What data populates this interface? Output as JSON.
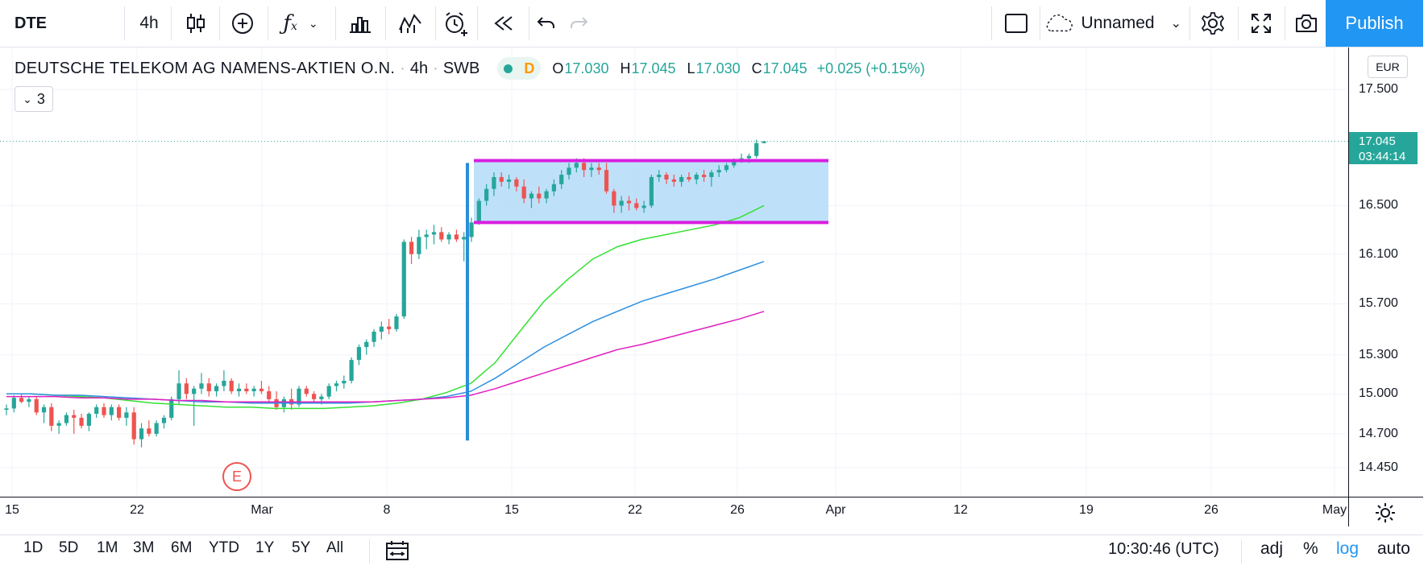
{
  "toolbar": {
    "symbol": "DTE",
    "interval": "4h",
    "layout_name": "Unnamed",
    "publish_label": "Publish",
    "icons": [
      "candles-icon",
      "add-compare-icon",
      "indicators-icon",
      "templates-icon",
      "alert-icon",
      "replay-icon",
      "undo-icon",
      "redo-icon",
      "layout-icon",
      "cloud-icon",
      "settings-icon",
      "fullscreen-icon",
      "camera-icon"
    ]
  },
  "legend": {
    "title": "DEUTSCHE TELEKOM AG NAMENS-AKTIEN O.N.",
    "interval": "4h",
    "exchange": "SWB",
    "badge_letter": "D",
    "o_key": "O",
    "o_val": "17.030",
    "h_key": "H",
    "h_val": "17.045",
    "l_key": "L",
    "l_val": "17.030",
    "c_key": "C",
    "c_val": "17.045",
    "change": "+0.025 (+0.15%)",
    "indicators_count": "3"
  },
  "price_scale": {
    "currency": "EUR",
    "labels": [
      "17.500",
      "16.500",
      "16.100",
      "15.700",
      "15.300",
      "15.000",
      "14.700",
      "14.450"
    ],
    "last_price": "17.045",
    "countdown": "03:44:14"
  },
  "time_scale": {
    "labels": [
      "15",
      "22",
      "Mar",
      "8",
      "15",
      "22",
      "26",
      "Apr",
      "12",
      "19",
      "26",
      "May"
    ]
  },
  "earnings_marker": "E",
  "bottom": {
    "ranges": [
      "1D",
      "5D",
      "1M",
      "3M",
      "6M",
      "YTD",
      "1Y",
      "5Y",
      "All"
    ],
    "clock": "10:30:46 (UTC)",
    "adj": "adj",
    "percent": "%",
    "log": "log",
    "auto": "auto"
  },
  "colors": {
    "up": "#26a69a",
    "down": "#ef5350",
    "ma_fast": "#33e033",
    "ma_mid": "#2d8fe0",
    "ma_slow": "#e020c0",
    "range_box": "#b3dcf8",
    "range_lines": "#d91ee0",
    "vertical_marker": "#2a8fd8",
    "accent": "#2196f3"
  },
  "chart_data": {
    "type": "candlestick",
    "symbol": "DTE",
    "interval": "4h",
    "scale": "log",
    "ylim": [
      14.35,
      17.65
    ],
    "candles": [
      [
        14.88,
        14.92,
        14.84,
        14.89
      ],
      [
        14.89,
        14.99,
        14.86,
        14.97
      ],
      [
        14.97,
        15.0,
        14.93,
        14.94
      ],
      [
        14.94,
        14.98,
        14.9,
        14.96
      ],
      [
        14.96,
        14.98,
        14.84,
        14.86
      ],
      [
        14.86,
        14.92,
        14.78,
        14.9
      ],
      [
        14.9,
        14.93,
        14.72,
        14.76
      ],
      [
        14.76,
        14.8,
        14.7,
        14.78
      ],
      [
        14.78,
        14.86,
        14.76,
        14.84
      ],
      [
        14.84,
        14.88,
        14.7,
        14.82
      ],
      [
        14.82,
        14.85,
        14.74,
        14.76
      ],
      [
        14.76,
        14.86,
        14.72,
        14.85
      ],
      [
        14.85,
        14.92,
        14.82,
        14.9
      ],
      [
        14.9,
        14.93,
        14.82,
        14.84
      ],
      [
        14.84,
        14.92,
        14.8,
        14.9
      ],
      [
        14.9,
        14.92,
        14.8,
        14.82
      ],
      [
        14.82,
        14.9,
        14.76,
        14.86
      ],
      [
        14.86,
        14.9,
        14.62,
        14.66
      ],
      [
        14.66,
        14.78,
        14.6,
        14.74
      ],
      [
        14.74,
        14.8,
        14.68,
        14.7
      ],
      [
        14.7,
        14.8,
        14.68,
        14.78
      ],
      [
        14.78,
        14.84,
        14.74,
        14.82
      ],
      [
        14.82,
        14.98,
        14.8,
        14.96
      ],
      [
        14.96,
        15.18,
        14.92,
        15.08
      ],
      [
        15.08,
        15.12,
        14.96,
        15.0
      ],
      [
        15.0,
        15.06,
        14.76,
        15.04
      ],
      [
        15.04,
        15.16,
        15.0,
        15.08
      ],
      [
        15.08,
        15.12,
        14.98,
        15.02
      ],
      [
        15.02,
        15.08,
        14.98,
        15.06
      ],
      [
        15.06,
        15.18,
        15.02,
        15.1
      ],
      [
        15.1,
        15.12,
        15.0,
        15.02
      ],
      [
        15.02,
        15.08,
        14.98,
        15.04
      ],
      [
        15.04,
        15.08,
        15.0,
        15.02
      ],
      [
        15.02,
        15.06,
        14.98,
        15.04
      ],
      [
        15.04,
        15.1,
        15.0,
        15.02
      ],
      [
        15.02,
        15.06,
        14.94,
        14.96
      ],
      [
        14.96,
        15.02,
        14.88,
        14.9
      ],
      [
        14.9,
        14.98,
        14.86,
        14.96
      ],
      [
        14.96,
        15.04,
        14.88,
        14.92
      ],
      [
        14.92,
        15.06,
        14.9,
        15.04
      ],
      [
        15.04,
        15.06,
        14.98,
        15.0
      ],
      [
        15.0,
        15.02,
        14.94,
        14.96
      ],
      [
        14.96,
        15.0,
        14.92,
        14.98
      ],
      [
        14.98,
        15.08,
        14.96,
        15.06
      ],
      [
        15.06,
        15.1,
        15.02,
        15.08
      ],
      [
        15.08,
        15.14,
        15.04,
        15.1
      ],
      [
        15.1,
        15.28,
        15.08,
        15.26
      ],
      [
        15.26,
        15.38,
        15.22,
        15.36
      ],
      [
        15.36,
        15.42,
        15.3,
        15.4
      ],
      [
        15.4,
        15.5,
        15.36,
        15.48
      ],
      [
        15.48,
        15.56,
        15.42,
        15.52
      ],
      [
        15.52,
        15.58,
        15.46,
        15.5
      ],
      [
        15.5,
        15.62,
        15.48,
        15.6
      ],
      [
        15.6,
        16.22,
        15.58,
        16.2
      ],
      [
        16.2,
        16.24,
        16.02,
        16.1
      ],
      [
        16.1,
        16.3,
        16.06,
        16.24
      ],
      [
        16.24,
        16.3,
        16.14,
        16.26
      ],
      [
        16.26,
        16.34,
        16.18,
        16.28
      ],
      [
        16.28,
        16.32,
        16.2,
        16.22
      ],
      [
        16.22,
        16.28,
        16.18,
        16.26
      ],
      [
        16.26,
        16.3,
        16.2,
        16.22
      ],
      [
        16.22,
        16.28,
        16.04,
        16.24
      ],
      [
        16.24,
        16.4,
        16.2,
        16.36
      ],
      [
        16.36,
        16.56,
        16.34,
        16.54
      ],
      [
        16.54,
        16.68,
        16.5,
        16.64
      ],
      [
        16.64,
        16.78,
        16.58,
        16.74
      ],
      [
        16.74,
        16.78,
        16.66,
        16.7
      ],
      [
        16.7,
        16.76,
        16.64,
        16.72
      ],
      [
        16.72,
        16.74,
        16.62,
        16.66
      ],
      [
        16.66,
        16.72,
        16.52,
        16.56
      ],
      [
        16.56,
        16.62,
        16.48,
        16.6
      ],
      [
        16.6,
        16.66,
        16.52,
        16.56
      ],
      [
        16.56,
        16.64,
        16.52,
        16.62
      ],
      [
        16.62,
        16.72,
        16.58,
        16.68
      ],
      [
        16.68,
        16.8,
        16.64,
        16.76
      ],
      [
        16.76,
        16.86,
        16.72,
        16.82
      ],
      [
        16.82,
        16.9,
        16.78,
        16.86
      ],
      [
        16.86,
        16.9,
        16.74,
        16.8
      ],
      [
        16.8,
        16.86,
        16.74,
        16.82
      ],
      [
        16.82,
        16.86,
        16.76,
        16.8
      ],
      [
        16.8,
        16.86,
        16.6,
        16.62
      ],
      [
        16.62,
        16.64,
        16.44,
        16.5
      ],
      [
        16.5,
        16.58,
        16.44,
        16.54
      ],
      [
        16.54,
        16.58,
        16.46,
        16.52
      ],
      [
        16.52,
        16.56,
        16.46,
        16.48
      ],
      [
        16.48,
        16.54,
        16.44,
        16.5
      ],
      [
        16.5,
        16.76,
        16.48,
        16.74
      ],
      [
        16.74,
        16.8,
        16.7,
        16.76
      ],
      [
        16.76,
        16.78,
        16.68,
        16.72
      ],
      [
        16.72,
        16.76,
        16.66,
        16.7
      ],
      [
        16.7,
        16.76,
        16.66,
        16.74
      ],
      [
        16.74,
        16.78,
        16.7,
        16.72
      ],
      [
        16.72,
        16.78,
        16.68,
        16.76
      ],
      [
        16.76,
        16.8,
        16.7,
        16.74
      ],
      [
        16.74,
        16.8,
        16.66,
        16.78
      ],
      [
        16.78,
        16.84,
        16.74,
        16.8
      ],
      [
        16.8,
        16.86,
        16.78,
        16.84
      ],
      [
        16.84,
        16.9,
        16.82,
        16.88
      ],
      [
        16.88,
        16.94,
        16.86,
        16.9
      ],
      [
        16.9,
        16.94,
        16.86,
        16.92
      ],
      [
        16.92,
        17.06,
        16.9,
        17.03
      ],
      [
        17.03,
        17.05,
        17.03,
        17.045
      ]
    ],
    "moving_averages": [
      {
        "color": "#33e033",
        "values": [
          15.0,
          15.0,
          14.99,
          14.98,
          14.97,
          14.95,
          14.93,
          14.92,
          14.91,
          14.9,
          14.9,
          14.89,
          14.89,
          14.89,
          14.9,
          14.91,
          14.93,
          14.96,
          15.01,
          15.08,
          15.24,
          15.48,
          15.72,
          15.9,
          16.06,
          16.16,
          16.22,
          16.26,
          16.3,
          16.34,
          16.4,
          16.5
        ]
      },
      {
        "color": "#2d8fe0",
        "values": [
          15.0,
          15.0,
          14.99,
          14.99,
          14.98,
          14.97,
          14.96,
          14.95,
          14.94,
          14.94,
          14.93,
          14.93,
          14.93,
          14.93,
          14.93,
          14.94,
          14.95,
          14.96,
          14.98,
          15.02,
          15.12,
          15.24,
          15.36,
          15.46,
          15.56,
          15.64,
          15.72,
          15.78,
          15.84,
          15.9,
          15.97,
          16.04
        ]
      },
      {
        "color": "#e020c0",
        "values": [
          14.98,
          14.98,
          14.98,
          14.97,
          14.97,
          14.96,
          14.96,
          14.95,
          14.95,
          14.94,
          14.94,
          14.94,
          14.94,
          14.94,
          14.94,
          14.94,
          14.95,
          14.96,
          14.97,
          14.99,
          15.04,
          15.1,
          15.16,
          15.22,
          15.28,
          15.34,
          15.38,
          15.43,
          15.48,
          15.53,
          15.58,
          15.64
        ]
      }
    ],
    "drawings": {
      "range_top": 16.88,
      "range_bottom": 16.36,
      "vertical_line_low": 14.65,
      "vertical_line_high": 16.86
    }
  }
}
